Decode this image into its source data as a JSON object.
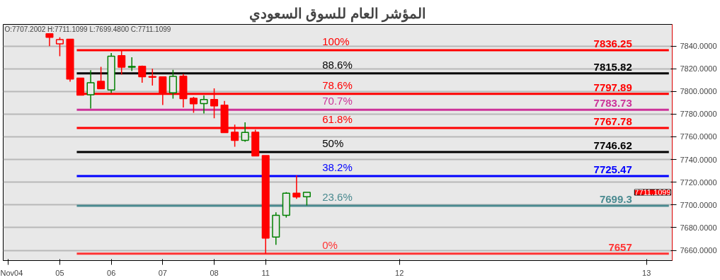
{
  "chart_data": {
    "type": "candlestick",
    "title": "المؤشر العام للسوق السعودي",
    "categories": [
      "Nov04",
      null,
      null,
      null,
      null,
      "05",
      null,
      null,
      null,
      null,
      "06",
      null,
      null,
      null,
      null,
      "07",
      null,
      null,
      null,
      null,
      "08",
      null,
      null,
      null,
      null,
      "11",
      null,
      null,
      null,
      null,
      null,
      null,
      null,
      null,
      null,
      null,
      null,
      null,
      "12",
      null,
      null,
      null,
      null,
      null,
      null,
      null,
      null,
      null,
      null,
      null,
      null,
      null,
      null,
      null,
      null,
      null,
      null,
      null,
      null,
      null,
      null,
      null,
      "13",
      null,
      null
    ],
    "ohlc": [
      null,
      null,
      null,
      null,
      [
        7850.8,
        7850.8,
        7839.8,
        7847.7
      ],
      [
        7841.9,
        7847.7,
        7831.0,
        7845.6
      ],
      [
        7846.0,
        7846.0,
        7808.6,
        7810.9
      ],
      [
        7811.7,
        7811.7,
        7796.7,
        7796.7
      ],
      [
        7797.0,
        7818.6,
        7784.9,
        7807.6
      ],
      [
        7808.8,
        7821.7,
        7802.0,
        7802.3
      ],
      [
        7801.3,
        7833.8,
        7798.6,
        7831.0
      ],
      [
        7831.5,
        7835.6,
        7814.8,
        7821.3
      ],
      [
        7821.3,
        7830.0,
        7817.9,
        7822.0
      ],
      [
        7822.1,
        7822.7,
        7807.6,
        7812.9
      ],
      [
        7813.0,
        7820.0,
        7805.1,
        7812.4
      ],
      [
        7812.8,
        7812.8,
        7788.0,
        7798.2
      ],
      [
        7798.8,
        7819.0,
        7793.6,
        7813.2
      ],
      [
        7813.4,
        7815.4,
        7785.9,
        7793.6
      ],
      [
        7794.0,
        7795.1,
        7781.1,
        7789.1
      ],
      [
        7789.3,
        7796.4,
        7780.5,
        7792.8
      ],
      [
        7792.8,
        7802.6,
        7776.4,
        7787.2
      ],
      [
        7787.8,
        7791.6,
        7763.7,
        7763.7
      ],
      [
        7764.1,
        7770.8,
        7751.2,
        7756.8
      ],
      [
        7756.8,
        7772.7,
        7755.6,
        7763.9
      ],
      [
        7764.1,
        7766.2,
        7743.1,
        7743.1
      ],
      [
        7743.5,
        7743.5,
        7657,
        7670.8
      ],
      [
        7671.7,
        7693.5,
        7664.8,
        7690.9
      ],
      [
        7690.9,
        7711.3,
        7688.9,
        7710.3
      ],
      [
        7710.3,
        7726.1,
        7705.3,
        7707.0
      ],
      [
        7707.2,
        7711.1,
        7699.5,
        7711.1
      ],
      null,
      null,
      null,
      null,
      null,
      null,
      null,
      null,
      null,
      null,
      null,
      null,
      null,
      null,
      null,
      null,
      null,
      null,
      null,
      null,
      null,
      null,
      null,
      null,
      null,
      null,
      null,
      null,
      null,
      null,
      null,
      null,
      null,
      null,
      null
    ],
    "colors": [
      null,
      null,
      null,
      null,
      "#ff0000",
      "#ff0000",
      "#ff0000",
      "#ff0000",
      "#008000",
      "#ff0000",
      "#008000",
      "#ff0000",
      "#008000",
      "#ff0000",
      "#ff0000",
      "#ff0000",
      "#008000",
      "#ff0000",
      "#ff0000",
      "#008000",
      "#ff0000",
      "#ff0000",
      "#ff0000",
      "#008000",
      "#ff0000",
      "#ff0000",
      "#008000",
      "#008000",
      "#ff0000",
      "#008000",
      null,
      null,
      null,
      null,
      null,
      null,
      null,
      null,
      null,
      null,
      null,
      null,
      null,
      null,
      null,
      null,
      null,
      null,
      null,
      null,
      null,
      null,
      null,
      null,
      null,
      null,
      null,
      null,
      null,
      null,
      null,
      null,
      null,
      null,
      null
    ],
    "ylim": [
      7651,
      7859
    ],
    "yticks": [
      {
        "value": 7660,
        "label": "7660.0000"
      },
      {
        "value": 7680,
        "label": "7680.0000"
      },
      {
        "value": 7700,
        "label": "7700.0000"
      },
      {
        "value": 7720,
        "label": "7720.0000"
      },
      {
        "value": 7740,
        "label": "7740.0000"
      },
      {
        "value": 7760,
        "label": "7760.0000"
      },
      {
        "value": 7780,
        "label": "7780.0000"
      },
      {
        "value": 7800,
        "label": "7800.0000"
      },
      {
        "value": 7820,
        "label": "7820.0000"
      },
      {
        "value": 7840,
        "label": "7840.0000"
      }
    ],
    "grid": "y",
    "ref_lines": [
      {
        "axis": "y",
        "value": 7836.25,
        "label": "7836.25",
        "color": "#ff0000"
      },
      {
        "axis": "y",
        "value": 7815.82,
        "label": "7815.82",
        "color": "#000000"
      },
      {
        "axis": "y",
        "value": 7797.89,
        "label": "7797.89",
        "color": "#ff0000"
      },
      {
        "axis": "y",
        "value": 7783.73,
        "label": "7783.73",
        "color": "#cc3399"
      },
      {
        "axis": "y",
        "value": 7767.78,
        "label": "7767.78",
        "color": "#ff0000"
      },
      {
        "axis": "y",
        "value": 7746.62,
        "label": "7746.62",
        "color": "#000000"
      },
      {
        "axis": "y",
        "value": 7725.47,
        "label": "7725.47",
        "color": "#0000ff"
      },
      {
        "axis": "y",
        "value": 7699.3,
        "label": "7699.3",
        "color": "#4a8a90"
      },
      {
        "axis": "y",
        "value": 7657,
        "label": "7657",
        "color": "#ff3333"
      }
    ],
    "annotations": [
      "O:7707.2002 H:7711.1099 L:7699.4800 C:7711.1099",
      "7711.1099",
      {
        "text": "100%",
        "y": 7836.25
      },
      {
        "text": "88.6%",
        "y": 7815.82
      },
      {
        "text": "78.6%",
        "y": 7797.89
      },
      {
        "text": "70.7%",
        "y": 7783.73
      },
      {
        "text": "61.8%",
        "y": 7767.78
      },
      {
        "text": "50%",
        "y": 7746.62
      },
      {
        "text": "38.2%",
        "y": 7725.47
      },
      {
        "text": "23.6%",
        "y": 7699.3
      },
      {
        "text": "0%",
        "y": 7657
      }
    ]
  }
}
